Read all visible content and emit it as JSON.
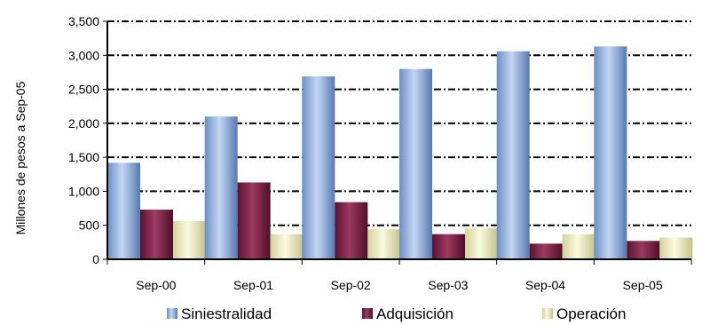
{
  "chart_data": {
    "type": "bar",
    "ylabel": "Millones de pesos a Sep-05",
    "xlabel": "",
    "ylim": [
      0,
      3500
    ],
    "yticks": [
      0,
      500,
      1000,
      1500,
      2000,
      2500,
      3000,
      3500
    ],
    "ytick_labels": [
      "0",
      "500",
      "1,000",
      "1,500",
      "2,000",
      "2,500",
      "3,000",
      "3,500"
    ],
    "categories": [
      "Sep-00",
      "Sep-01",
      "Sep-02",
      "Sep-03",
      "Sep-04",
      "Sep-05"
    ],
    "grid": "horizontal dash-dot",
    "legend_position": "bottom",
    "series": [
      {
        "name": "Siniestralidad",
        "color": "#8fb2e3",
        "values": [
          1420,
          2100,
          2690,
          2800,
          3060,
          3130
        ]
      },
      {
        "name": "Adquisición",
        "color": "#7a1f40",
        "values": [
          730,
          1130,
          840,
          370,
          230,
          270
        ]
      },
      {
        "name": "Operación",
        "color": "#f0eebc",
        "values": [
          560,
          370,
          440,
          460,
          370,
          320
        ]
      }
    ]
  }
}
